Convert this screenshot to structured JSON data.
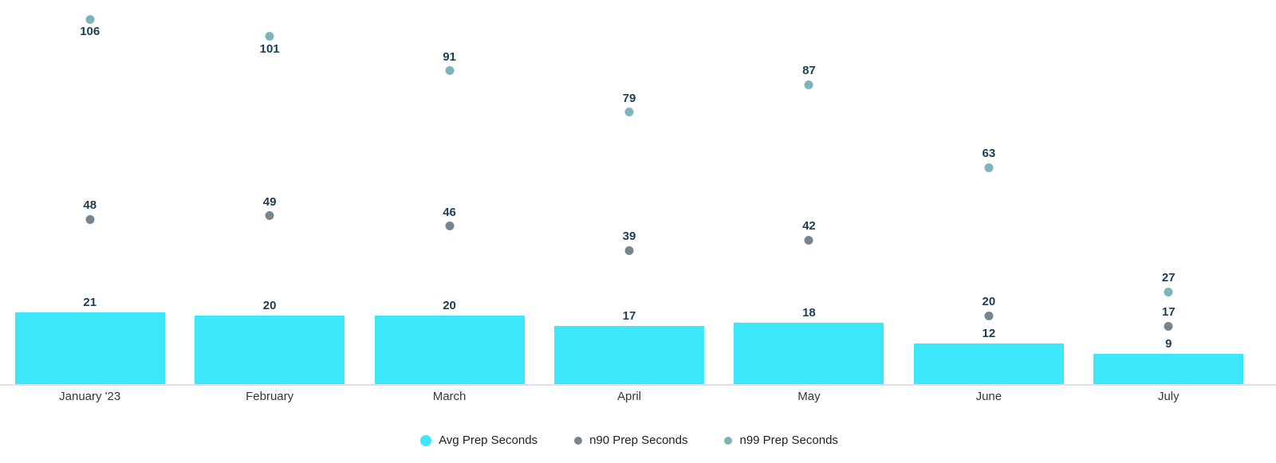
{
  "chart_data": {
    "type": "bar",
    "subtype": "bar-with-point-series",
    "categories": [
      "January '23",
      "February",
      "March",
      "April",
      "May",
      "June",
      "July"
    ],
    "series": [
      {
        "name": "Avg Prep Seconds",
        "mark": "bar",
        "color": "#3BE7F9",
        "values": [
          21,
          20,
          20,
          17,
          18,
          12,
          9
        ]
      },
      {
        "name": "n90 Prep Seconds",
        "mark": "point",
        "color": "#76868F",
        "values": [
          48,
          49,
          46,
          39,
          42,
          20,
          17
        ]
      },
      {
        "name": "n99 Prep Seconds",
        "mark": "point",
        "color": "#7CB4BD",
        "values": [
          106,
          101,
          91,
          79,
          87,
          63,
          27
        ]
      }
    ],
    "title": "",
    "xlabel": "",
    "ylabel": "",
    "ylim": [
      0,
      110
    ],
    "grid": false,
    "y_axis_visible": false,
    "value_labels": true,
    "legend_position": "bottom"
  },
  "legend": {
    "items": [
      {
        "label": "Avg Prep Seconds",
        "color": "#3BE7F9",
        "shape": "circle-large"
      },
      {
        "label": "n90 Prep Seconds",
        "color": "#76868F",
        "shape": "circle-small"
      },
      {
        "label": "n99 Prep Seconds",
        "color": "#7CB4BD",
        "shape": "circle-small"
      }
    ]
  },
  "style": {
    "value_label_color": "#1C3E52",
    "axis_label_color": "#33373B",
    "legend_text_color": "#202124",
    "axis_line_color": "#DDE0EA",
    "background": "#FFFFFF"
  }
}
